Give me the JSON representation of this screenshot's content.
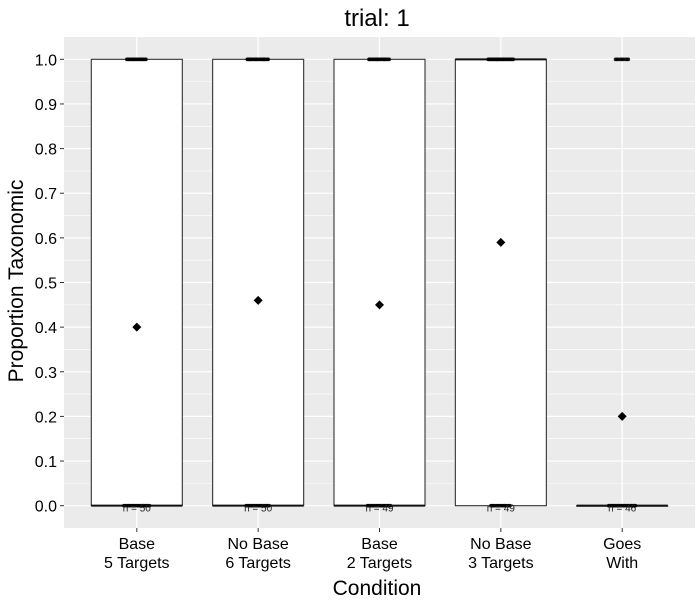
{
  "chart_data": {
    "type": "bar",
    "title": "trial: 1",
    "xlabel": "Condition",
    "ylabel": "Proportion Taxonomic",
    "ylim": [
      -0.05,
      1.05
    ],
    "yticks": [
      "0.0",
      "0.1",
      "0.2",
      "0.3",
      "0.4",
      "0.5",
      "0.6",
      "0.7",
      "0.8",
      "0.9",
      "1.0"
    ],
    "categories": [
      [
        "Base",
        "5 Targets"
      ],
      [
        "No Base",
        "6 Targets"
      ],
      [
        "Base",
        "2 Targets"
      ],
      [
        "No Base",
        "3 Targets"
      ],
      [
        "Goes",
        "With"
      ]
    ],
    "boxes": [
      {
        "q1": 0,
        "q3": 1,
        "median": 0,
        "mean": 0.4,
        "n_label": "n = 50",
        "n": 50
      },
      {
        "q1": 0,
        "q3": 1,
        "median": 0,
        "mean": 0.46,
        "n_label": "n = 50",
        "n": 50
      },
      {
        "q1": 0,
        "q3": 1,
        "median": 0,
        "mean": 0.45,
        "n_label": "n = 49",
        "n": 49
      },
      {
        "q1": 0,
        "q3": 1,
        "median": 1,
        "mean": 0.59,
        "n_label": "n = 49",
        "n": 49
      },
      {
        "q1": 0,
        "q3": 0,
        "median": 0,
        "mean": 0.2,
        "n_label": "n = 46",
        "n": 46
      }
    ],
    "grid": true,
    "colors": {
      "panel": "#ebebeb",
      "grid_major": "#ffffff",
      "box_fill": "#ffffff",
      "box_line": "#333333",
      "point": "#000000"
    }
  }
}
